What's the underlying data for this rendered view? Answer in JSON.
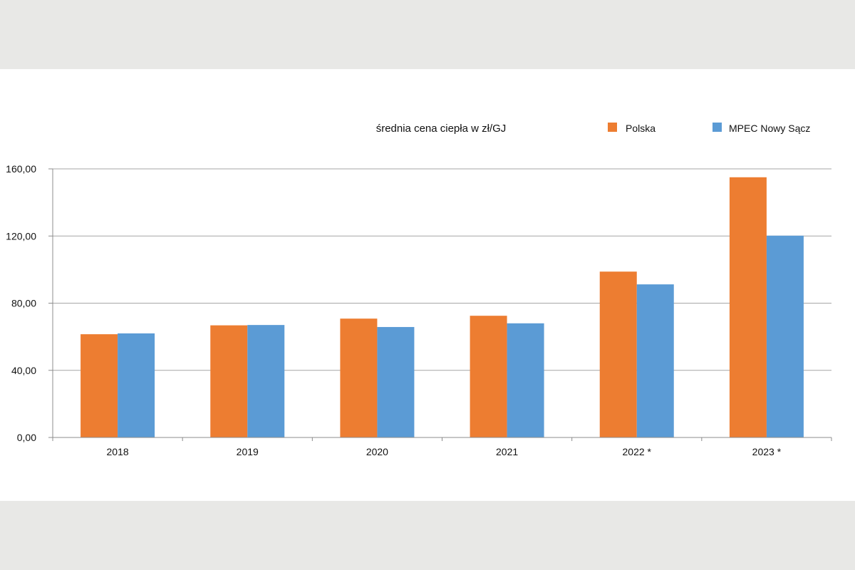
{
  "chart_data": {
    "type": "bar",
    "title": "średnia cena ciepła w zł/GJ",
    "categories": [
      "2018",
      "2019",
      "2020",
      "2021",
      "2022 *",
      "2023 *"
    ],
    "series": [
      {
        "name": "Polska",
        "color": "#ED7D31",
        "values": [
          61.5,
          66.8,
          70.8,
          72.5,
          98.8,
          155.0
        ]
      },
      {
        "name": "MPEC Nowy Sącz",
        "color": "#5B9BD5",
        "values": [
          62.0,
          67.0,
          65.8,
          68.0,
          91.2,
          120.2
        ]
      }
    ],
    "ylim": [
      0,
      160
    ],
    "yticks": [
      0,
      40,
      80,
      120,
      160
    ],
    "ytick_labels": [
      "0,00",
      "40,00",
      "80,00",
      "120,00",
      "160,00"
    ],
    "xlabel": "",
    "ylabel": "",
    "grid": true,
    "legend_position": "top-right"
  }
}
